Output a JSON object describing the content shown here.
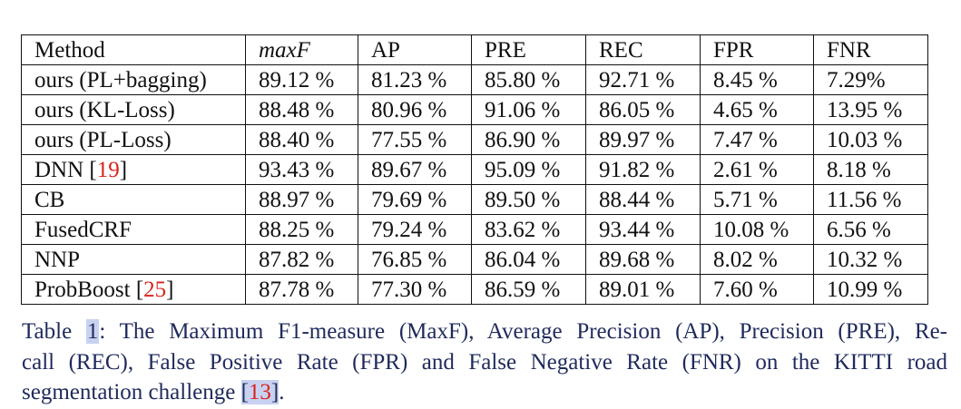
{
  "table": {
    "headers": [
      "Method",
      "maxF",
      "AP",
      "PRE",
      "REC",
      "FPR",
      "FNR"
    ],
    "rows": [
      {
        "method": "ours (PL+bagging)",
        "cite": "",
        "values": [
          "89.12 %",
          "81.23 %",
          "85.80 %",
          "92.71 %",
          "8.45 %",
          "7.29%"
        ]
      },
      {
        "method": "ours (KL-Loss)",
        "cite": "",
        "values": [
          "88.48 %",
          "80.96 %",
          "91.06 %",
          "86.05 %",
          "4.65 %",
          "13.95 %"
        ]
      },
      {
        "method": "ours (PL-Loss)",
        "cite": "",
        "values": [
          "88.40 %",
          "77.55 %",
          "86.90 %",
          "89.97 %",
          "7.47 %",
          "10.03 %"
        ]
      },
      {
        "method": "DNN ",
        "cite": "19",
        "values": [
          "93.43 %",
          "89.67 %",
          "95.09 %",
          "91.82 %",
          "2.61 %",
          "8.18 %"
        ]
      },
      {
        "method": "CB",
        "cite": "",
        "values": [
          "88.97 %",
          "79.69 %",
          "89.50 %",
          "88.44 %",
          "5.71 %",
          "11.56 %"
        ]
      },
      {
        "method": "FusedCRF",
        "cite": "",
        "values": [
          "88.25 %",
          "79.24 %",
          "83.62 %",
          "93.44 %",
          "10.08 %",
          "6.56 %"
        ]
      },
      {
        "method": "NNP",
        "cite": "",
        "values": [
          "87.82 %",
          "76.85 %",
          "86.04 %",
          "89.68 %",
          "8.02 %",
          "10.32 %"
        ]
      },
      {
        "method": "ProbBoost ",
        "cite": "25",
        "values": [
          "87.78 %",
          "77.30 %",
          "86.59 %",
          "89.01 %",
          "7.60 %",
          "10.99 %"
        ]
      }
    ]
  },
  "caption": {
    "prefix": "Table ",
    "number": "1",
    "line1_rest": ": The Maximum F1-measure (MaxF), Average Precision (AP), Precision (PRE), Re-",
    "line2": "call (REC), False Positive Rate (FPR) and False Negative Rate (FNR) on the KITTI road",
    "line3_pre": "segmentation challenge ",
    "line3_cite": "13",
    "line3_post": "."
  },
  "colors": {
    "citation": "#d8231d",
    "caption_text": "#1f2a5c",
    "link_highlight": "#c8d2f0"
  }
}
